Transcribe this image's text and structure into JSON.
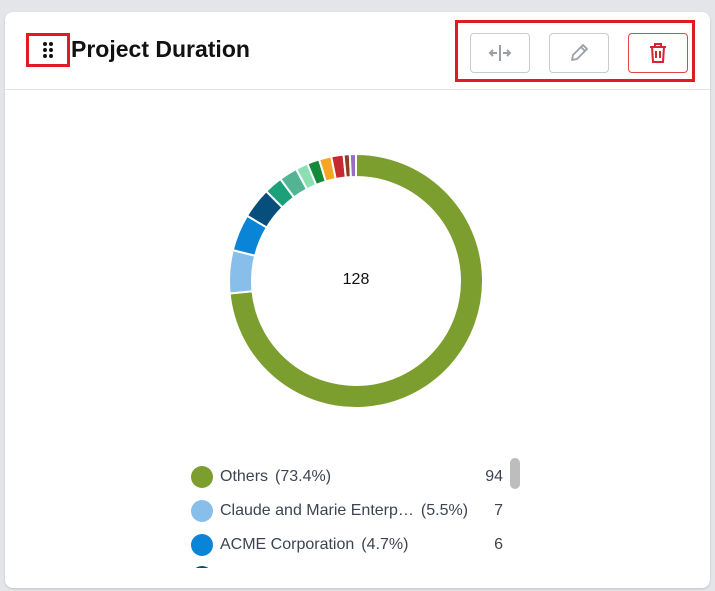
{
  "widget": {
    "title": "Project Duration",
    "total": "128"
  },
  "icons": {
    "drag": "drag-handle-icon",
    "resize": "resize-horizontal-icon",
    "edit": "pencil-icon",
    "delete": "trash-icon"
  },
  "colors": {
    "highlight": "#e01b24",
    "delete": "#d9242f"
  },
  "chart_data": {
    "type": "pie",
    "total": 128,
    "categories": [
      "Others",
      "Claude and Marie Enterp…",
      "ACME Corporation",
      "",
      "",
      "",
      "",
      "",
      "",
      "",
      "",
      ""
    ],
    "values": [
      94,
      7,
      6,
      5,
      3,
      3,
      2,
      2,
      2,
      2,
      1,
      1
    ],
    "colors": [
      "#7c9e2e",
      "#88bfea",
      "#0984d6",
      "#064f7d",
      "#1ba07a",
      "#52b493",
      "#8ae0b3",
      "#138a3a",
      "#f5a623",
      "#c8292f",
      "#8b3f1e",
      "#9b6bc6"
    ]
  },
  "legend": [
    {
      "name": "Others",
      "pct": "(73.4%)",
      "value": "94",
      "color": "#7c9e2e"
    },
    {
      "name": "Claude and Marie Enterp…",
      "pct": "(5.5%)",
      "value": "7",
      "color": "#88bfea"
    },
    {
      "name": "ACME Corporation",
      "pct": "(4.7%)",
      "value": "6",
      "color": "#0984d6"
    },
    {
      "name": "",
      "pct": "",
      "value": "",
      "color": "#064f7d"
    }
  ]
}
